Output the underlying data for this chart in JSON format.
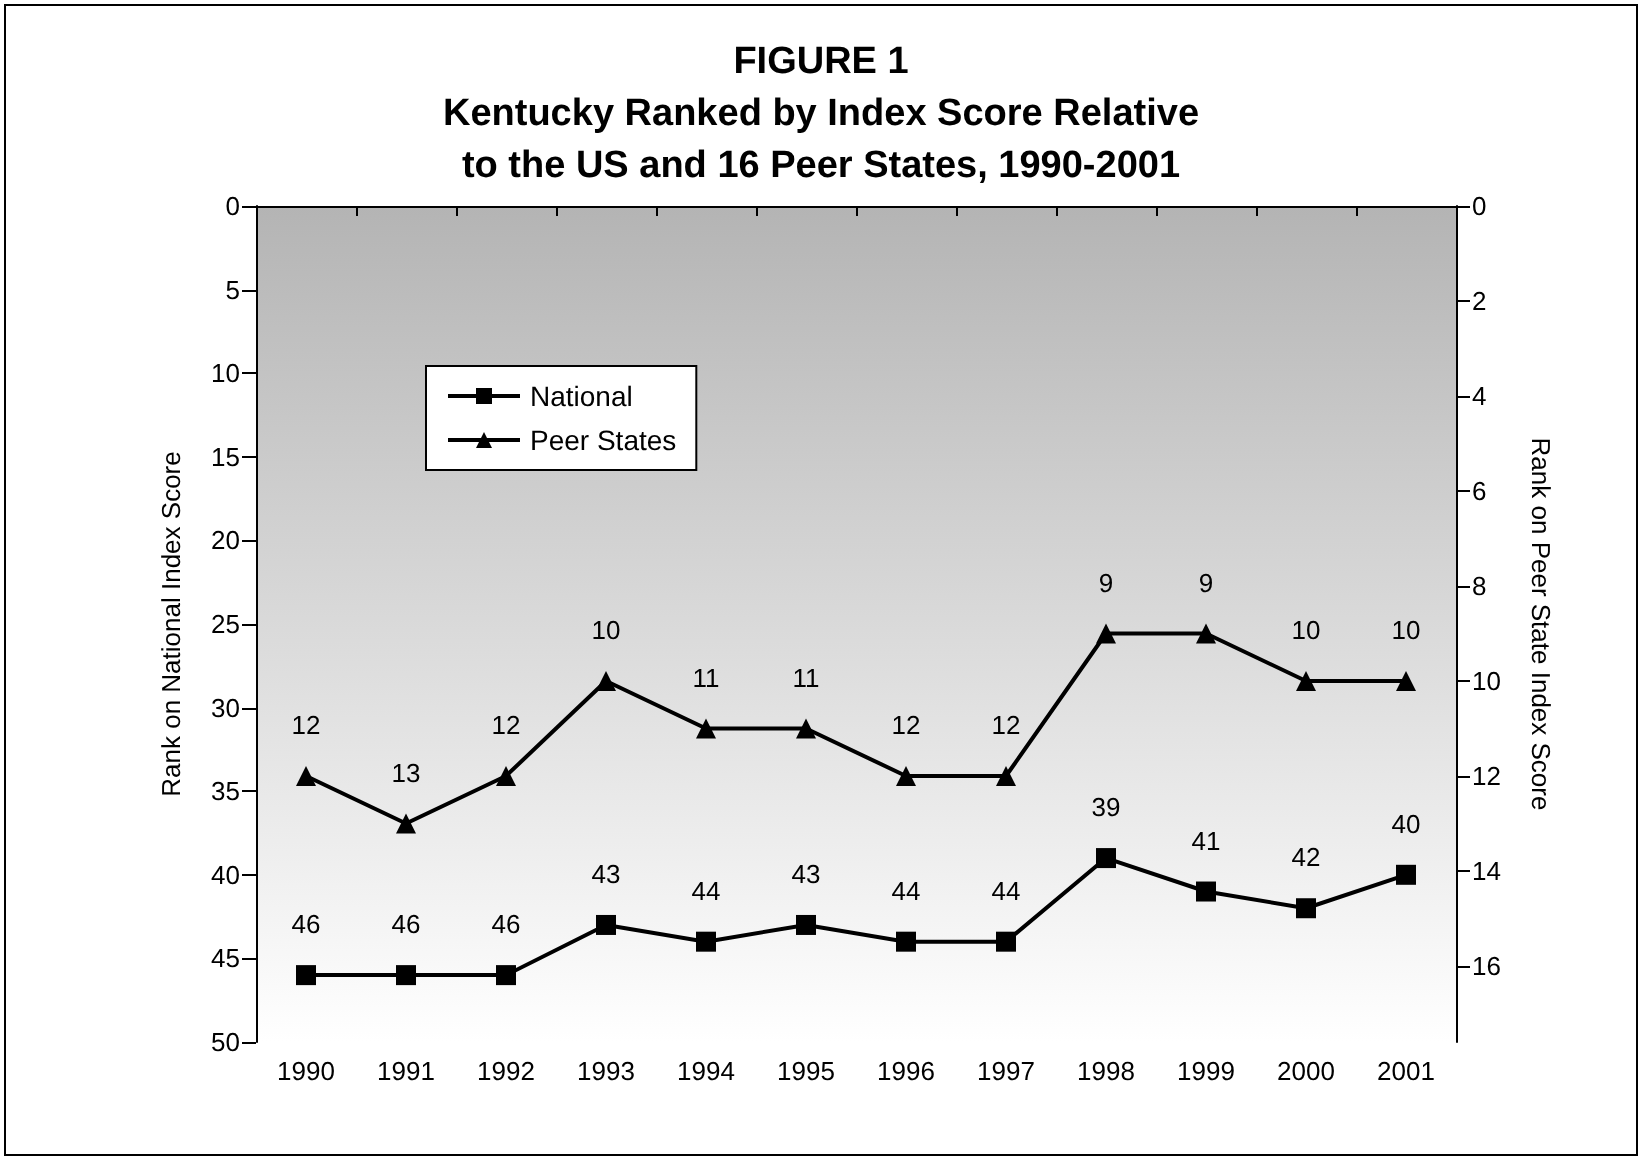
{
  "chart_data": {
    "type": "line",
    "title": "FIGURE 1\nKentucky Ranked by Index Score Relative\nto the US and 16 Peer States, 1990-2001",
    "categories": [
      "1990",
      "1991",
      "1992",
      "1993",
      "1994",
      "1995",
      "1996",
      "1997",
      "1998",
      "1999",
      "2000",
      "2001"
    ],
    "series": [
      {
        "name": "National",
        "color": "#000000",
        "marker": "square",
        "values": [
          46,
          46,
          46,
          43,
          44,
          43,
          44,
          44,
          39,
          41,
          42,
          40
        ]
      },
      {
        "name": "Peer States",
        "color": "#000000",
        "marker": "triangle",
        "axis": "y2",
        "values": [
          12,
          13,
          12,
          10,
          11,
          11,
          12,
          12,
          9,
          9,
          10,
          10
        ]
      }
    ],
    "ylabel": "Rank on National Index Score",
    "y2label": "Rank on Peer State Index Score",
    "ylim": [
      50,
      0
    ],
    "yticks": [
      0,
      5,
      10,
      15,
      20,
      25,
      30,
      35,
      40,
      45,
      50
    ],
    "y2lim": [
      17.6,
      0
    ],
    "y2ticks": [
      0,
      2,
      4,
      6,
      8,
      10,
      12,
      14,
      16
    ],
    "data_labels": true,
    "legend": "top left",
    "grid": false,
    "line_style": "solid"
  }
}
